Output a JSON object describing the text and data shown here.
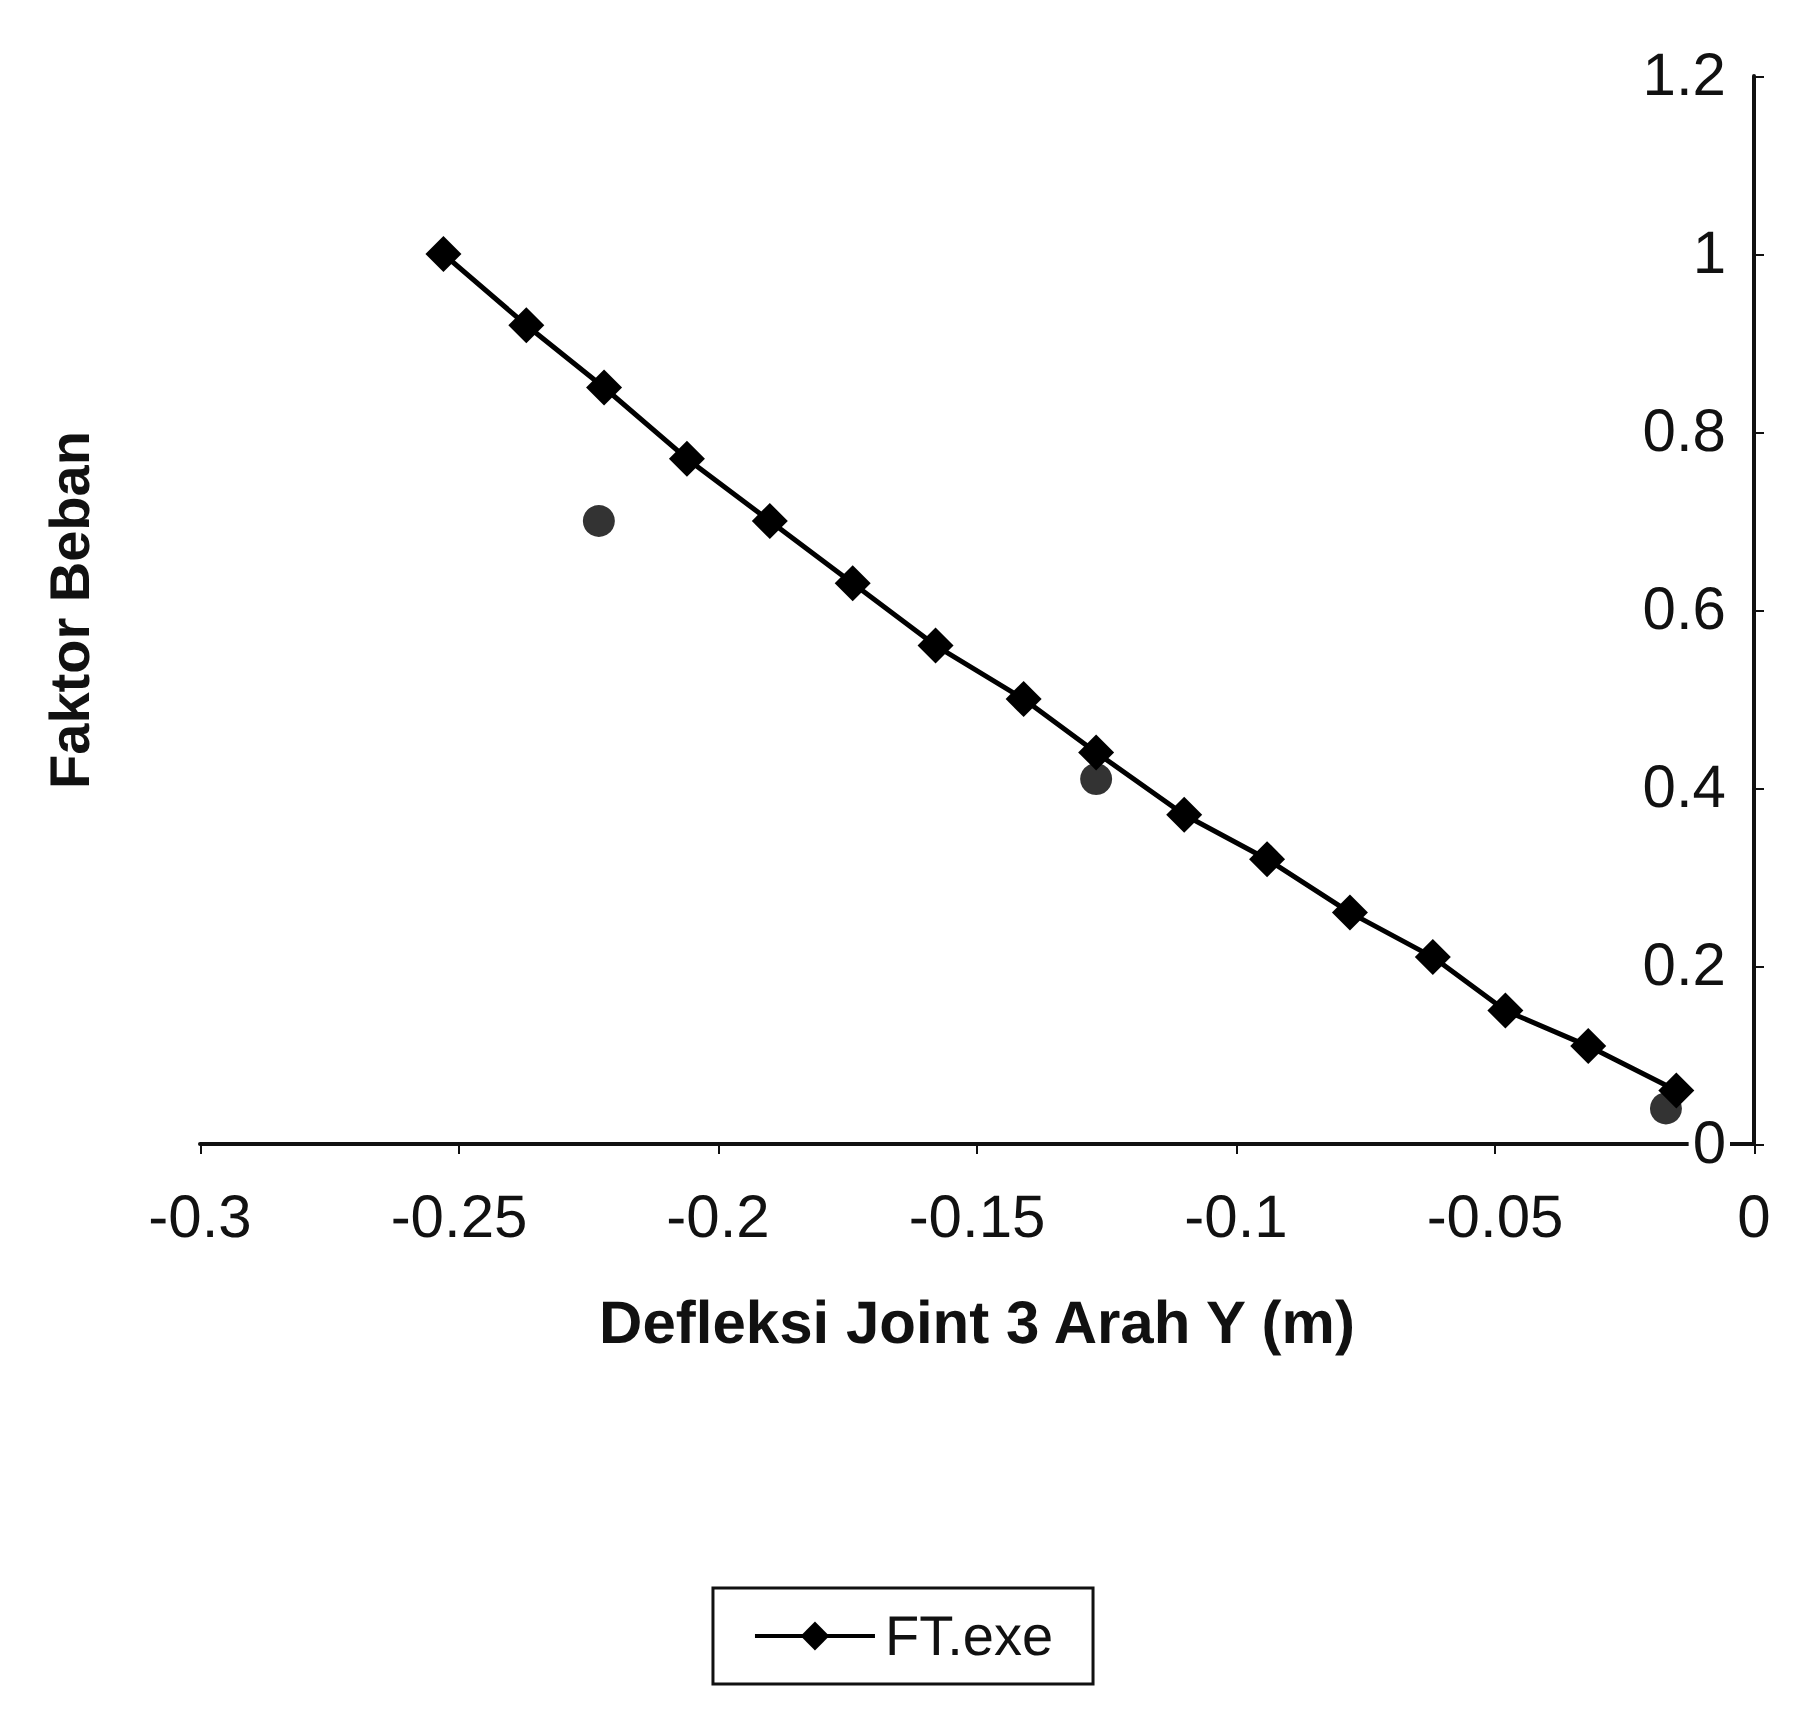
{
  "chart_data": {
    "type": "line",
    "xlabel": "Defleksi Joint 3 Arah Y (m)",
    "ylabel": "Faktor Beban",
    "xlim": [
      -0.3,
      0
    ],
    "xticks": [
      -0.3,
      -0.25,
      -0.2,
      -0.15,
      -0.1,
      -0.05,
      0
    ],
    "ylim": [
      0,
      1.2
    ],
    "yticks": [
      0,
      0.2,
      0.4,
      0.6,
      0.8,
      1,
      1.2
    ],
    "grid": false,
    "legend": "bottom",
    "series": [
      {
        "name": "FT.exe",
        "color": "#000000",
        "marker": "diamond",
        "x": [
          -0.253,
          -0.237,
          -0.222,
          -0.206,
          -0.19,
          -0.174,
          -0.158,
          -0.141,
          -0.127,
          -0.11,
          -0.094,
          -0.078,
          -0.062,
          -0.048,
          -0.032,
          -0.015
        ],
        "values": [
          1.0,
          0.92,
          0.85,
          0.77,
          0.7,
          0.63,
          0.56,
          0.5,
          0.44,
          0.37,
          0.32,
          0.26,
          0.21,
          0.15,
          0.11,
          0.06
        ]
      },
      {
        "type": "scatter",
        "color": "#000000",
        "marker": "circle",
        "x": [
          -0.223,
          -0.127,
          -0.017
        ],
        "values": [
          0.7,
          0.41,
          0.04
        ]
      }
    ]
  }
}
